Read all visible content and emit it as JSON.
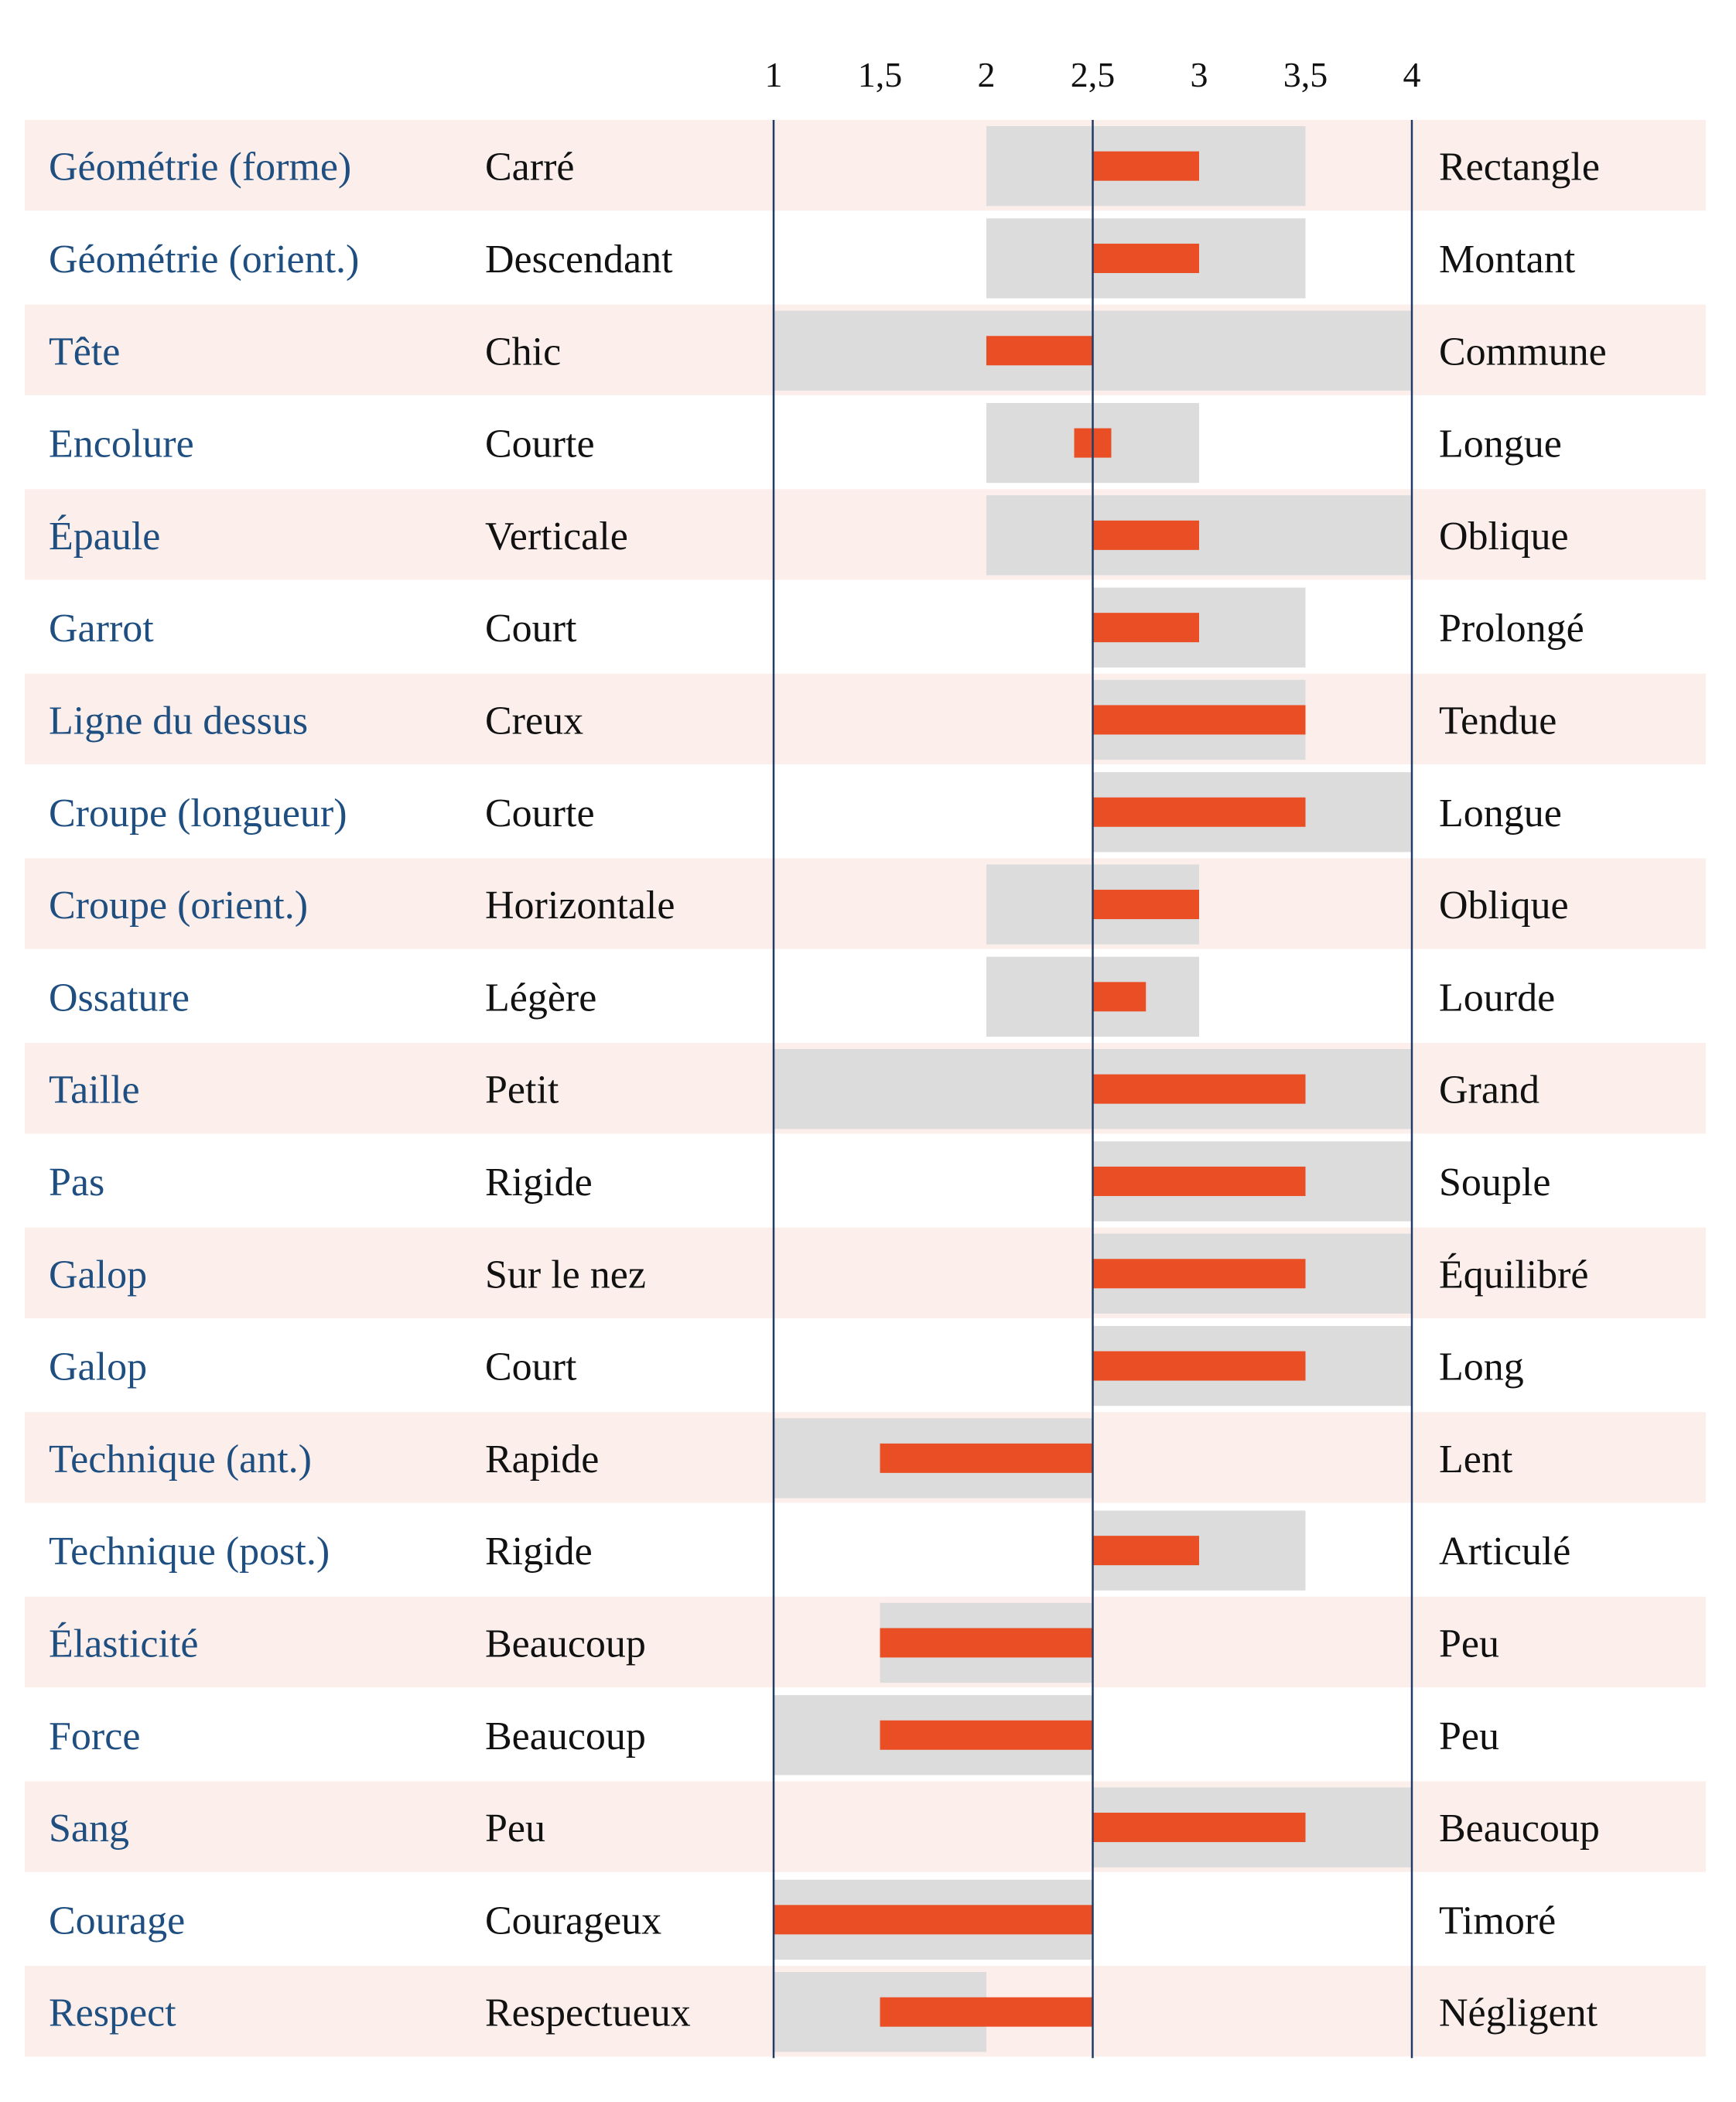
{
  "chart_data": {
    "type": "bar",
    "x_ticks": [
      "1",
      "1,5",
      "2",
      "2,5",
      "3",
      "3,5",
      "4"
    ],
    "xlim": [
      1,
      4
    ],
    "reference_value": 2.5,
    "colors": {
      "value_bar": "#e94e24",
      "range_band": "#dcdcdc",
      "row_stripe": "#fcefeb",
      "trait_text": "#1f4e80",
      "axis_line": "#1f3b66"
    },
    "rows": [
      {
        "trait": "Géométrie (forme)",
        "low": "Carré",
        "high": "Rectangle",
        "value": 3.0,
        "range": [
          2.0,
          3.5
        ]
      },
      {
        "trait": "Géométrie (orient.)",
        "low": "Descendant",
        "high": "Montant",
        "value": 3.0,
        "range": [
          2.0,
          3.5
        ]
      },
      {
        "trait": "Tête",
        "low": "Chic",
        "high": "Commune",
        "value": 2.0,
        "range": [
          1.0,
          4.0
        ]
      },
      {
        "trait": "Encolure",
        "low": "Courte",
        "high": "Longue",
        "value": 2.5,
        "range": [
          2.0,
          3.0
        ]
      },
      {
        "trait": "Épaule",
        "low": "Verticale",
        "high": "Oblique",
        "value": 3.0,
        "range": [
          2.0,
          4.0
        ]
      },
      {
        "trait": "Garrot",
        "low": "Court",
        "high": "Prolongé",
        "value": 3.0,
        "range": [
          2.5,
          3.5
        ]
      },
      {
        "trait": "Ligne du dessus",
        "low": "Creux",
        "high": "Tendue",
        "value": 3.5,
        "range": [
          2.5,
          3.5
        ]
      },
      {
        "trait": "Croupe (longueur)",
        "low": "Courte",
        "high": "Longue",
        "value": 3.5,
        "range": [
          2.5,
          4.0
        ]
      },
      {
        "trait": "Croupe (orient.)",
        "low": "Horizontale",
        "high": "Oblique",
        "value": 3.0,
        "range": [
          2.0,
          3.0
        ]
      },
      {
        "trait": "Ossature",
        "low": "Légère",
        "high": "Lourde",
        "value": 2.75,
        "range": [
          2.0,
          3.0
        ]
      },
      {
        "trait": "Taille",
        "low": "Petit",
        "high": "Grand",
        "value": 3.5,
        "range": [
          1.0,
          4.0
        ]
      },
      {
        "trait": "Pas",
        "low": "Rigide",
        "high": "Souple",
        "value": 3.5,
        "range": [
          2.5,
          4.0
        ]
      },
      {
        "trait": "Galop",
        "low": "Sur le nez",
        "high": "Équilibré",
        "value": 3.5,
        "range": [
          2.5,
          4.0
        ]
      },
      {
        "trait": "Galop",
        "low": "Court",
        "high": "Long",
        "value": 3.5,
        "range": [
          2.5,
          4.0
        ]
      },
      {
        "trait": "Technique (ant.)",
        "low": "Rapide",
        "high": "Lent",
        "value": 1.5,
        "range": [
          1.0,
          2.5
        ]
      },
      {
        "trait": "Technique (post.)",
        "low": "Rigide",
        "high": "Articulé",
        "value": 3.0,
        "range": [
          2.5,
          3.5
        ]
      },
      {
        "trait": "Élasticité",
        "low": "Beaucoup",
        "high": "Peu",
        "value": 1.5,
        "range": [
          1.5,
          2.5
        ]
      },
      {
        "trait": "Force",
        "low": "Beaucoup",
        "high": "Peu",
        "value": 1.5,
        "range": [
          1.0,
          2.5
        ]
      },
      {
        "trait": "Sang",
        "low": "Peu",
        "high": "Beaucoup",
        "value": 3.5,
        "range": [
          2.5,
          4.0
        ]
      },
      {
        "trait": "Courage",
        "low": "Courageux",
        "high": "Timoré",
        "value": 1.0,
        "range": [
          1.0,
          2.5
        ]
      },
      {
        "trait": "Respect",
        "low": "Respectueux",
        "high": "Négligent",
        "value": 1.5,
        "range": [
          1.0,
          2.0
        ]
      }
    ]
  }
}
